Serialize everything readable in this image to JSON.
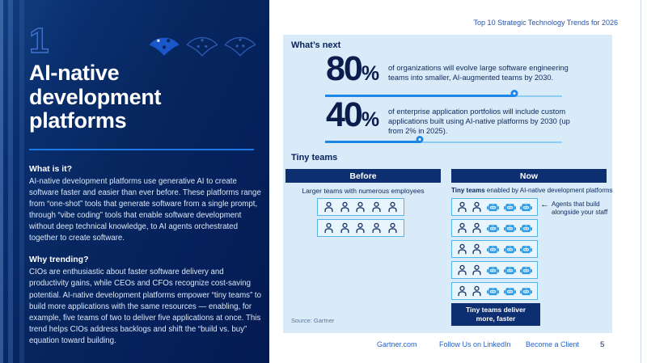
{
  "page": {
    "header": "Top 10 Strategic Technology Trends for 2026"
  },
  "left_panel": {
    "trend_number": "1",
    "title": "AI-native development platforms",
    "sections": [
      {
        "heading": "What is it?",
        "body": "AI-native development platforms use generative AI to create software faster and easier than ever before. These platforms range from “one-shot” tools that generate software from a single prompt, through “vibe coding” tools that enable software development without deep technical knowledge, to AI agents orchestrated together to create software."
      },
      {
        "heading": "Why trending?",
        "body": "CIOs are enthusiastic about faster software delivery and productivity gains, while CEOs and CFOs recognize cost-saving potential. AI-native development platforms empower “tiny teams” to build more applications with the same resources — enabling, for example, five teams of two to deliver five applications at once. This trend helps CIOs address backlogs and shift the “build vs. buy” equation toward building."
      }
    ]
  },
  "whats_next": {
    "heading": "What’s next",
    "stats": [
      {
        "value": "80",
        "unit": "%",
        "pct": 80,
        "text": "of organizations will evolve large software engineering teams into smaller, AI-augmented teams by 2030."
      },
      {
        "value": "40",
        "unit": "%",
        "pct": 40,
        "text": "of enterprise application portfolios will include custom applications built using AI-native platforms by 2030 (up from 2% in 2025)."
      }
    ]
  },
  "tiny_teams": {
    "heading": "Tiny teams",
    "before": {
      "header": "Before",
      "caption": "Larger teams with numerous employees",
      "rows": 2,
      "people_per_row": 5,
      "agents_per_row": 0
    },
    "now": {
      "header": "Now",
      "caption_bold": "Tiny teams",
      "caption_rest": " enabled by AI-native development platforms",
      "rows": 5,
      "people_per_row": 2,
      "agents_per_row": 3,
      "annotation": "Agents that build alongside your staff",
      "banner": "Tiny teams deliver more, faster"
    }
  },
  "source": "Source: Gartner",
  "footer": {
    "links": [
      "Gartner.com",
      "Follow Us on LinkedIn",
      "Become a Client"
    ],
    "page_number": "5"
  },
  "icons": {
    "employee": "person-icon",
    "agent": "robot-icon",
    "trend_glyph": "fan-icon",
    "annotation_arrow": "arrow-left-icon"
  },
  "colors": {
    "sidebar_navy": "#07265f",
    "dark_navy_text": "#0a1d4d",
    "panel_blue": "#d9eaf8",
    "accent_blue": "#1e87e6",
    "accent_blue_light": "#8ecdf2",
    "robot_blue": "#2f9ce8",
    "box_border": "#54b4e6",
    "header_bar_navy": "#0d2e70",
    "link_blue": "#2563c9"
  }
}
